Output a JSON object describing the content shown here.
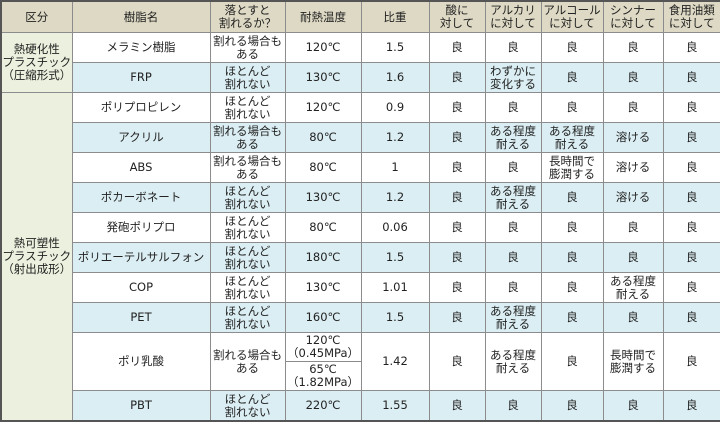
{
  "headers": [
    "区分",
    "樹脂名",
    "落とすと\n割れるか？",
    "耐熱温度",
    "比重",
    "酸に\n対して",
    "アルカリ\nに対して",
    "アルコール\nに対して",
    "シンナー\nに対して",
    "食用油類\nに対して"
  ],
  "groups": [
    {
      "category": "熱硬化性\nプラスチック\n（圧縮形式）",
      "rows": [
        {
          "name": "メラミン樹脂",
          "drop": "割れる場合も\nある",
          "heat": "120℃",
          "sg": "1.5",
          "acid": "良",
          "alkali": "良",
          "alcohol": "良",
          "thinner": "良",
          "oil": "良"
        },
        {
          "name": "FRP",
          "drop": "ほとんど\n割れない",
          "heat": "130℃",
          "sg": "1.6",
          "acid": "良",
          "alkali": "わずかに\n変化する",
          "alcohol": "良",
          "thinner": "良",
          "oil": "良"
        }
      ]
    },
    {
      "category": "熱可塑性\nプラスチック\n（射出成形）",
      "rows": [
        {
          "name": "ポリプロピレン",
          "drop": "ほとんど\n割れない",
          "heat": "120℃",
          "sg": "0.9",
          "acid": "良",
          "alkali": "良",
          "alcohol": "良",
          "thinner": "良",
          "oil": "良"
        },
        {
          "name": "アクリル",
          "drop": "割れる場合も\nある",
          "heat": "80℃",
          "sg": "1.2",
          "acid": "良",
          "alkali": "ある程度\n耐える",
          "alcohol": "ある程度\n耐える",
          "thinner": "溶ける",
          "oil": "良"
        },
        {
          "name": "ABS",
          "drop": "割れる場合も\nある",
          "heat": "80℃",
          "sg": "1",
          "acid": "良",
          "alkali": "良",
          "alcohol": "長時間で\n膨潤する",
          "thinner": "溶ける",
          "oil": "良"
        },
        {
          "name": "ポカーボネート",
          "drop": "ほとんど\n割れない",
          "heat": "130℃",
          "sg": "1.2",
          "acid": "良",
          "alkali": "ある程度\n耐える",
          "alcohol": "良",
          "thinner": "溶ける",
          "oil": "良"
        },
        {
          "name": "発砲ポリプロ",
          "drop": "ほとんど\n割れない",
          "heat": "80℃",
          "sg": "0.06",
          "acid": "良",
          "alkali": "良",
          "alcohol": "良",
          "thinner": "良",
          "oil": "良"
        },
        {
          "name": "ポリエーテルサルフォン",
          "drop": "ほとんど\n割れない",
          "heat": "180℃",
          "sg": "1.5",
          "acid": "良",
          "alkali": "良",
          "alcohol": "良",
          "thinner": "良",
          "oil": "良"
        },
        {
          "name": "COP",
          "drop": "ほとんど\n割れない",
          "heat": "130℃",
          "sg": "1.01",
          "acid": "良",
          "alkali": "良",
          "alcohol": "良",
          "thinner": "ある程度\n耐える",
          "oil": "良"
        },
        {
          "name": "PET",
          "drop": "ほとんど\n割れない",
          "heat": "160℃",
          "sg": "1.5",
          "acid": "良",
          "alkali": "ある程度\n耐える",
          "alcohol": "良",
          "thinner": "良",
          "oil": "良"
        },
        {
          "name": "ポリ乳酸",
          "drop": "割れる場合も\nある",
          "heat": "120℃\n（0.45MPa）",
          "heat2": "65℃\n（1.82MPa）",
          "sg": "1.42",
          "acid": "良",
          "alkali": "ある程度\n耐える",
          "alcohol": "良",
          "thinner": "長時間で\n膨潤する",
          "oil": "良"
        },
        {
          "name": "PBT",
          "drop": "ほとんど\n割れない",
          "heat": "220℃",
          "sg": "1.55",
          "acid": "良",
          "alkali": "良",
          "alcohol": "良",
          "thinner": "良",
          "oil": "良"
        }
      ]
    }
  ],
  "colors": {
    "header": "#ddd9c4",
    "category": "#ebf1de",
    "stripe": "#dbeef3"
  }
}
